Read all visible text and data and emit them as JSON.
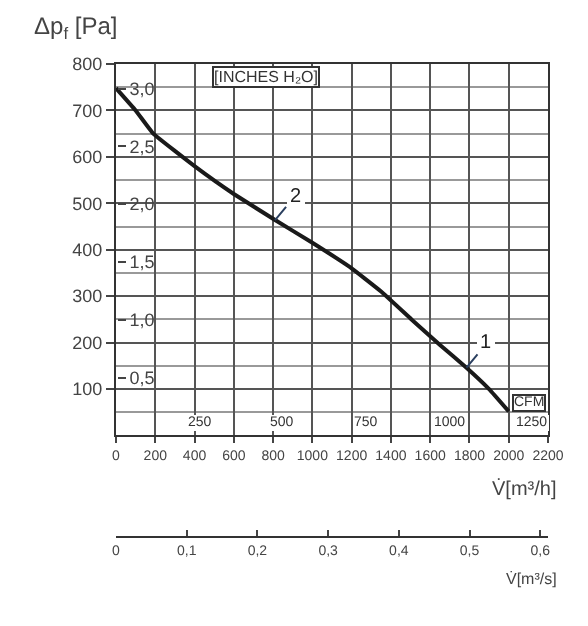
{
  "chart_data": {
    "type": "line",
    "ylabel": "Δp$_{f}$ [Pa]",
    "xlabel": "V̇[m³/h]",
    "y2label": "[INCHES H₂O]",
    "x2label": "V̇[m³/s]",
    "x": [
      0,
      100,
      190,
      400,
      600,
      810,
      1000,
      1190,
      1350,
      1505,
      1650,
      1785,
      1900,
      2000
    ],
    "series": [
      {
        "color": "#1a1a1a",
        "values": [
          748,
          700,
          650,
          580,
          520,
          464,
          415,
          363,
          310,
          250,
          195,
          146,
          100,
          52
        ]
      }
    ],
    "annotations": [
      {
        "text": "2",
        "x": 810,
        "y": 464
      },
      {
        "text": "1",
        "x": 1785,
        "y": 146
      },
      "CFM",
      "250",
      "500",
      "750",
      "1000",
      "1250"
    ],
    "xlim": [
      0,
      2200
    ],
    "xticks": [
      0,
      200,
      400,
      600,
      800,
      1000,
      1200,
      1400,
      1600,
      1800,
      2000,
      2200
    ],
    "ylim": [
      0,
      800
    ],
    "yticks": [
      100,
      200,
      300,
      400,
      500,
      600,
      700,
      800
    ],
    "y2lim": [
      0,
      3.212
    ],
    "y2ticks": [
      {
        "value": 0.5,
        "label": "0,5"
      },
      {
        "value": 1.0,
        "label": "1,0"
      },
      {
        "value": 1.5,
        "label": "1,5"
      },
      {
        "value": 2.0,
        "label": "2,0"
      },
      {
        "value": 2.5,
        "label": "2,5"
      },
      {
        "value": 3.0,
        "label": "3,0"
      }
    ],
    "x2lim": [
      0,
      0.611
    ],
    "x2ticks": [
      0,
      {
        "value": 0.1,
        "label": "0,1"
      },
      {
        "value": 0.2,
        "label": "0,2"
      },
      {
        "value": 0.3,
        "label": "0,3"
      },
      {
        "value": 0.4,
        "label": "0,4"
      },
      {
        "value": 0.5,
        "label": "0,5"
      },
      {
        "value": 0.6,
        "label": "0,6"
      }
    ],
    "grid": true,
    "marker": "none",
    "line_style": "solid"
  }
}
